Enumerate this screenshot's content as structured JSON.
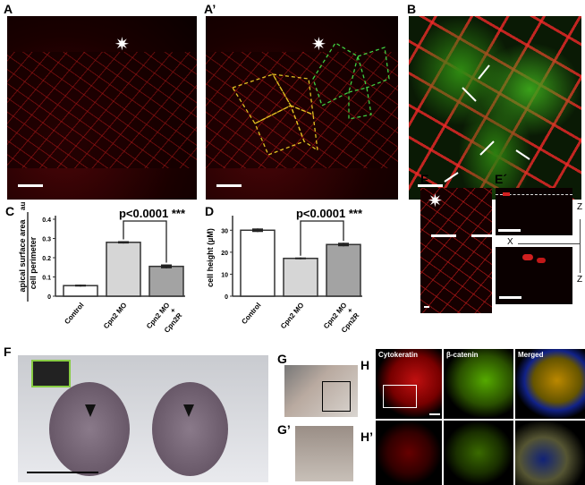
{
  "panels": {
    "A": "A",
    "A2": "A’",
    "B": "B",
    "C": "C",
    "D": "D",
    "E": "E",
    "E2": "E´",
    "F": "F",
    "G": "G",
    "G2": "G’",
    "H": "H",
    "H2": "H’"
  },
  "symbols": {
    "asterisk": "✷"
  },
  "e_axes": {
    "z_top": "Z",
    "x": "X",
    "z_bottom": "Z"
  },
  "h_columns": [
    "Cytokeratin",
    "β-catenin",
    "Merged"
  ],
  "chart_data": [
    {
      "type": "bar",
      "panel": "C",
      "categories": [
        "Control",
        "Cpn2 MO",
        "Cpn2 MO + Cpn2R"
      ],
      "category_lines": [
        [
          "Control"
        ],
        [
          "Cpn2 MO"
        ],
        [
          "Cpn2 MO",
          "+",
          "Cpn2R"
        ]
      ],
      "values": [
        0.055,
        0.28,
        0.155
      ],
      "errors": [
        0.005,
        0.006,
        0.01
      ],
      "ylabel_numerator": "apical surface area",
      "ylabel_denominator": "cell perimeter",
      "ylabel_unit": "au",
      "ylim": [
        0,
        0.4
      ],
      "yticks": [
        "0",
        "0.1",
        "0.2",
        "0.3",
        "0.4"
      ],
      "annotation": "p<0.0001 ***",
      "bar_colors": [
        "#ffffff",
        "#d6d6d6",
        "#a3a3a3"
      ]
    },
    {
      "type": "bar",
      "panel": "D",
      "categories": [
        "Control",
        "Cpn2 MO",
        "Cpn2 MO + Cpn2R"
      ],
      "category_lines": [
        [
          "Control"
        ],
        [
          "Cpn2 MO"
        ],
        [
          "Cpn2 MO",
          "+",
          "Cpn2R"
        ]
      ],
      "values": [
        30,
        17.2,
        23.5
      ],
      "errors": [
        0.8,
        0.4,
        0.8
      ],
      "ylabel": "cell height (µM)",
      "ylim": [
        0,
        35
      ],
      "yticks": [
        "0",
        "10",
        "20",
        "30"
      ],
      "annotation": "p<0.0001 ***",
      "bar_colors": [
        "#ffffff",
        "#d6d6d6",
        "#a3a3a3"
      ]
    }
  ]
}
